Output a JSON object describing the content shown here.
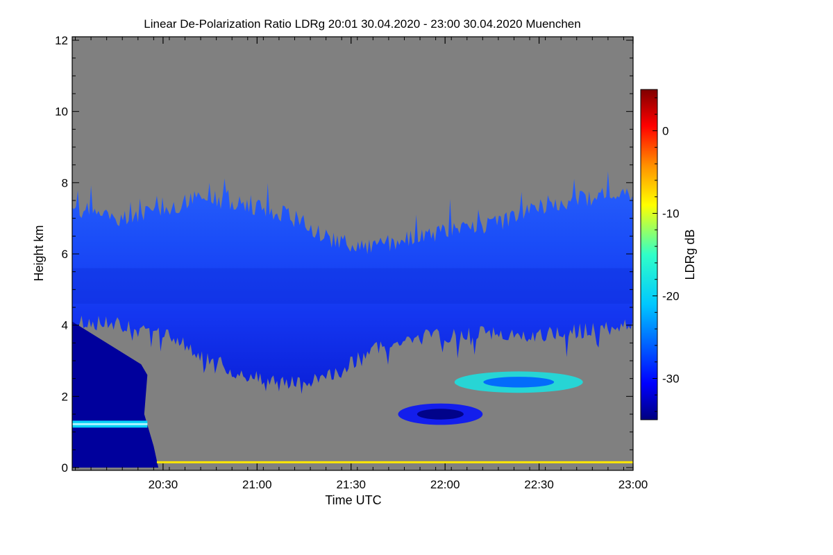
{
  "chart_data": {
    "type": "heatmap",
    "title": "Linear De-Polarization Ratio LDRg   20:01 30.04.2020 - 23:00 30.04.2020 Muenchen",
    "xlabel": "Time UTC",
    "ylabel": "Height km",
    "colorbar_label": "LDRg dB",
    "x_range_minutes": [
      0,
      179
    ],
    "x_ticks": [
      {
        "label": "20:30",
        "minute": 29
      },
      {
        "label": "21:00",
        "minute": 59
      },
      {
        "label": "21:30",
        "minute": 89
      },
      {
        "label": "22:00",
        "minute": 119
      },
      {
        "label": "22:30",
        "minute": 149
      },
      {
        "label": "23:00",
        "minute": 179
      }
    ],
    "ylim": [
      0,
      12
    ],
    "y_ticks": [
      0,
      2,
      4,
      6,
      8,
      10,
      12
    ],
    "colorbar_range": [
      -35,
      5
    ],
    "colorbar_ticks": [
      0,
      -10,
      -20,
      -30
    ],
    "background_color": "#808080",
    "features": [
      {
        "name": "main-cloud-layer",
        "ldr_db": -30,
        "start_min": 0,
        "end_min": 179,
        "base_km": [
          4.1,
          4.1,
          3.9,
          3.2,
          2.6,
          2.4,
          2.6,
          3.4,
          3.7,
          3.8,
          3.8,
          3.8,
          3.9,
          4.1
        ],
        "top_km": [
          7.3,
          7.0,
          7.2,
          7.6,
          7.4,
          7.1,
          6.4,
          6.2,
          6.5,
          6.7,
          6.9,
          7.4,
          7.6,
          7.7
        ]
      },
      {
        "name": "low-layer",
        "ldr_db": -34,
        "start_min": 0,
        "end_min": 25,
        "base_km": 0,
        "top_km": 2.9
      },
      {
        "name": "bright-band",
        "ldr_db": -20,
        "start_min": 0,
        "end_min": 24,
        "height_km": 1.22
      },
      {
        "name": "low-cloud-patch-1",
        "ldr_db": -30,
        "start_min": 104,
        "end_min": 131,
        "base_km": 1.2,
        "top_km": 1.8
      },
      {
        "name": "low-cloud-patch-2",
        "ldr_db": -18,
        "start_min": 122,
        "end_min": 163,
        "base_km": 2.1,
        "top_km": 2.7
      },
      {
        "name": "ground-clutter",
        "ldr_db": -8,
        "start_min": 27,
        "end_min": 179,
        "height_km": 0.15
      }
    ]
  }
}
